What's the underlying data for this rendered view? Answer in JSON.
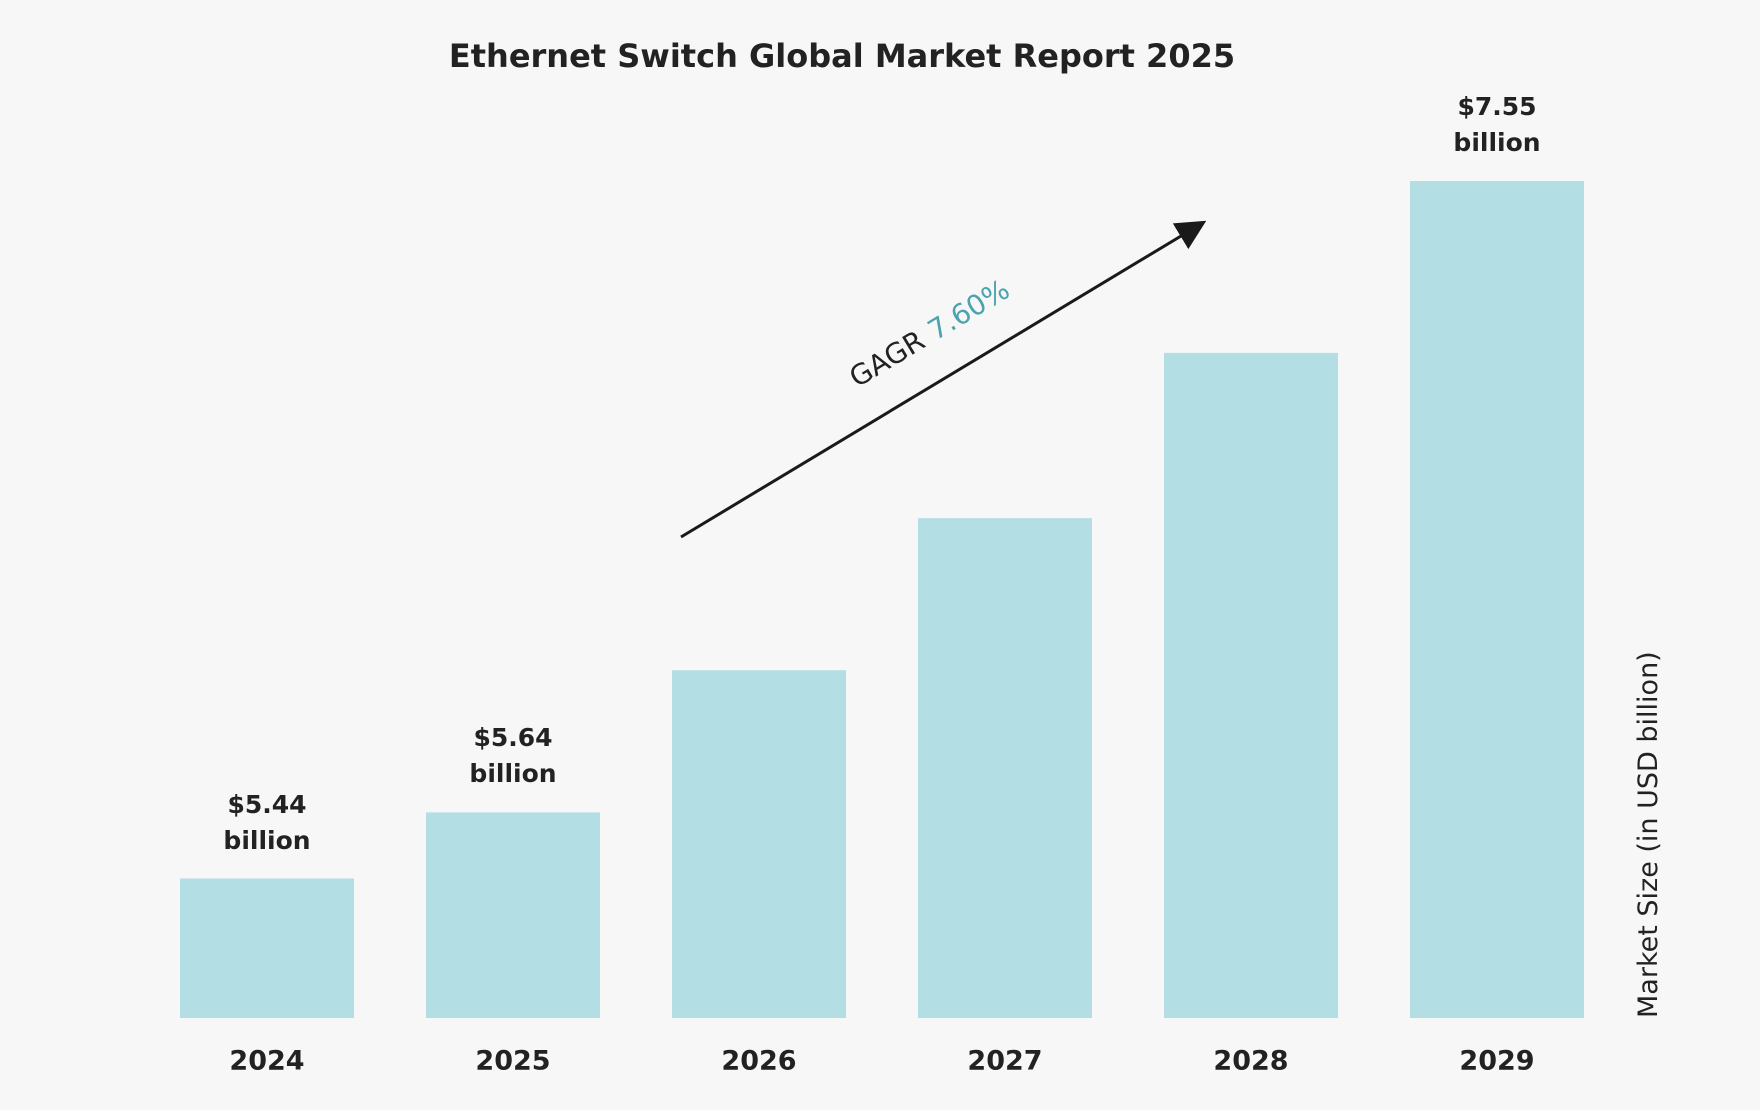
{
  "chart_data": {
    "type": "bar",
    "title": "Ethernet Switch Global Market Report 2025",
    "categories": [
      "2024",
      "2025",
      "2026",
      "2027",
      "2028",
      "2029"
    ],
    "values": [
      5.44,
      5.64,
      6.07,
      6.53,
      7.03,
      7.55
    ],
    "value_labels": [
      "$5.44 billion",
      "$5.64 billion",
      null,
      null,
      null,
      "$7.55 billion"
    ],
    "color": "#b3dee4",
    "y_label": "Market Size (in USD billion)",
    "annotation": {
      "label": "GAGR",
      "value": "7.60%",
      "color": "#4aa3ad"
    }
  }
}
